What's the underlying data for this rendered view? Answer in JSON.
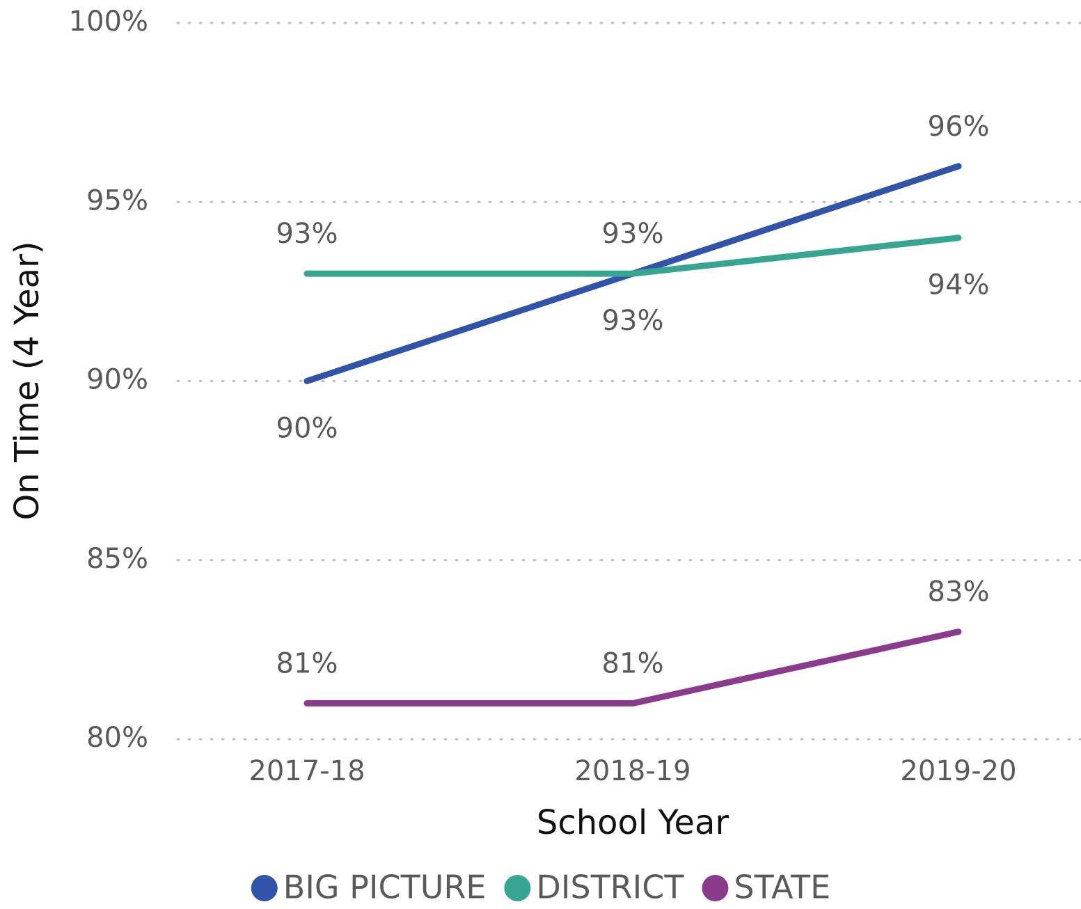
{
  "chart_data": {
    "type": "line",
    "categories": [
      "2017-18",
      "2018-19",
      "2019-20"
    ],
    "series": [
      {
        "name": "BIG PICTURE",
        "color": "#3154a8",
        "values": [
          90,
          93,
          96
        ],
        "value_labels": [
          "90%",
          "93%",
          "96%"
        ]
      },
      {
        "name": "DISTRICT",
        "color": "#37a58f",
        "values": [
          93,
          93,
          94
        ],
        "value_labels": [
          "93%",
          "93%",
          "94%"
        ]
      },
      {
        "name": "STATE",
        "color": "#8a3b8b",
        "values": [
          81,
          81,
          83
        ],
        "value_labels": [
          "81%",
          "81%",
          "83%"
        ]
      }
    ],
    "xlabel": "School Year",
    "ylabel": "On Time (4 Year)",
    "ylim": [
      80,
      100
    ],
    "yticks": [
      {
        "value": 80,
        "label": "80%"
      },
      {
        "value": 85,
        "label": "85%"
      },
      {
        "value": 90,
        "label": "90%"
      },
      {
        "value": 95,
        "label": "95%"
      },
      {
        "value": 100,
        "label": "100%"
      }
    ],
    "grid": true,
    "legend": "bottom"
  }
}
